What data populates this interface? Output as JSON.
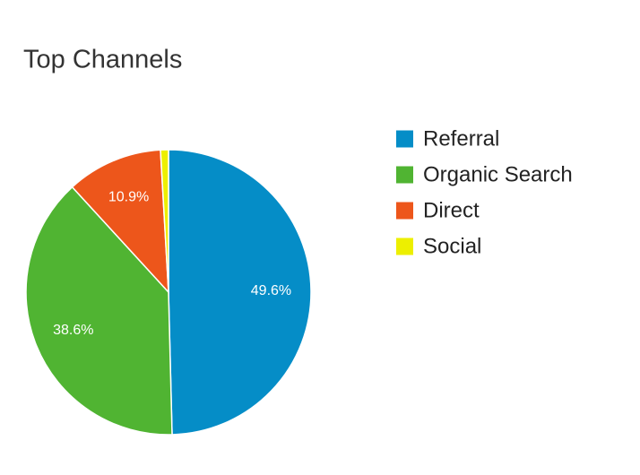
{
  "chart_data": {
    "type": "pie",
    "title": "Top Channels",
    "categories": [
      "Referral",
      "Organic Search",
      "Direct",
      "Social"
    ],
    "values": [
      49.6,
      38.6,
      10.9,
      0.9
    ],
    "value_labels": [
      "49.6%",
      "38.6%",
      "10.9%",
      null
    ],
    "colors": [
      "#058dc7",
      "#50b432",
      "#ed561b",
      "#edef00"
    ],
    "legend": "right"
  }
}
